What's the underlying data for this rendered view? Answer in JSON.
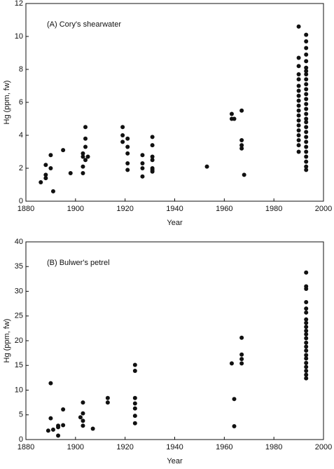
{
  "chart_data": [
    {
      "type": "scatter",
      "annotation": "(A) Cory's shearwater",
      "xlabel": "Year",
      "ylabel": "Hg (ppm, fw)",
      "color": "#111111",
      "xlim": [
        1880,
        2000
      ],
      "xticks": [
        1880,
        1900,
        1920,
        1940,
        1960,
        1980,
        2000
      ],
      "ylim": [
        0,
        12
      ],
      "yticks": [
        0,
        2,
        4,
        6,
        8,
        10,
        12
      ],
      "x": [
        1886,
        1888,
        1888,
        1888,
        1890,
        1890,
        1891,
        1895,
        1898,
        1903,
        1903,
        1903,
        1903,
        1904,
        1904,
        1904,
        1904,
        1905,
        1919,
        1919,
        1919,
        1921,
        1921,
        1921,
        1921,
        1921,
        1927,
        1927,
        1927,
        1927,
        1931,
        1931,
        1931,
        1931,
        1931,
        1931,
        1931,
        1953,
        1963,
        1963,
        1964,
        1967,
        1967,
        1967,
        1967,
        1968,
        1990,
        1990,
        1990,
        1990,
        1990,
        1990,
        1990,
        1990,
        1990,
        1990,
        1990,
        1990,
        1990,
        1990,
        1990,
        1990,
        1990,
        1990,
        1990,
        1993,
        1993,
        1993,
        1993,
        1993,
        1993,
        1993,
        1993,
        1993,
        1993,
        1993,
        1993,
        1993,
        1993,
        1993,
        1993,
        1993,
        1993,
        1993,
        1993,
        1993,
        1993,
        1993,
        1993,
        1993,
        1993,
        1993,
        1993
      ],
      "values": [
        1.15,
        1.4,
        1.6,
        2.2,
        2.0,
        2.8,
        0.6,
        3.1,
        1.7,
        1.7,
        2.1,
        2.7,
        2.9,
        4.5,
        3.8,
        3.3,
        2.5,
        2.7,
        4.5,
        4.0,
        3.6,
        3.8,
        3.3,
        2.9,
        2.3,
        1.9,
        2.8,
        2.3,
        2.0,
        1.5,
        3.9,
        3.4,
        2.7,
        2.5,
        2.0,
        1.9,
        1.8,
        2.1,
        5.3,
        5.0,
        5.0,
        5.5,
        3.7,
        3.4,
        3.2,
        1.6,
        10.6,
        8.7,
        8.2,
        7.7,
        7.4,
        7.0,
        6.7,
        6.4,
        6.1,
        5.8,
        5.5,
        5.2,
        4.9,
        4.6,
        4.3,
        4.0,
        3.7,
        3.4,
        3.0,
        10.1,
        9.7,
        9.3,
        8.9,
        8.5,
        8.1,
        7.9,
        7.7,
        7.4,
        7.1,
        6.8,
        6.5,
        6.2,
        5.9,
        5.6,
        5.3,
        5.0,
        4.8,
        4.5,
        4.2,
        3.9,
        3.6,
        3.3,
        3.0,
        2.7,
        2.4,
        2.1,
        1.9
      ]
    },
    {
      "type": "scatter",
      "annotation": "(B) Bulwer's petrel",
      "xlabel": "Year",
      "ylabel": "Hg (ppm, fw)",
      "color": "#111111",
      "xlim": [
        1880,
        2000
      ],
      "xticks": [
        1880,
        1900,
        1920,
        1940,
        1960,
        1980,
        2000
      ],
      "ylim": [
        0,
        40
      ],
      "yticks": [
        0,
        5,
        10,
        15,
        20,
        25,
        30,
        35,
        40
      ],
      "x": [
        1889,
        1890,
        1890,
        1891,
        1893,
        1893,
        1893,
        1895,
        1895,
        1902,
        1903,
        1903,
        1903,
        1903,
        1907,
        1913,
        1913,
        1924,
        1924,
        1924,
        1924,
        1924,
        1924,
        1924,
        1963,
        1964,
        1964,
        1967,
        1967,
        1967,
        1967,
        1993,
        1993,
        1993,
        1993,
        1993,
        1993,
        1993,
        1993,
        1993,
        1993,
        1993,
        1993,
        1993,
        1993,
        1993,
        1993,
        1993,
        1993,
        1993,
        1993,
        1993,
        1993
      ],
      "values": [
        1.8,
        11.4,
        4.3,
        2.0,
        2.5,
        0.8,
        2.8,
        6.1,
        2.9,
        4.5,
        5.3,
        7.5,
        3.8,
        2.8,
        2.2,
        8.4,
        7.5,
        15.1,
        13.9,
        8.4,
        7.3,
        6.3,
        4.8,
        3.3,
        15.4,
        8.2,
        2.7,
        20.6,
        17.2,
        16.3,
        15.4,
        33.8,
        31.0,
        30.5,
        27.8,
        26.5,
        25.7,
        24.3,
        23.6,
        22.8,
        22.0,
        21.3,
        20.5,
        19.6,
        18.8,
        18.0,
        17.1,
        16.4,
        15.5,
        14.7,
        13.9,
        13.1,
        12.4
      ]
    }
  ]
}
